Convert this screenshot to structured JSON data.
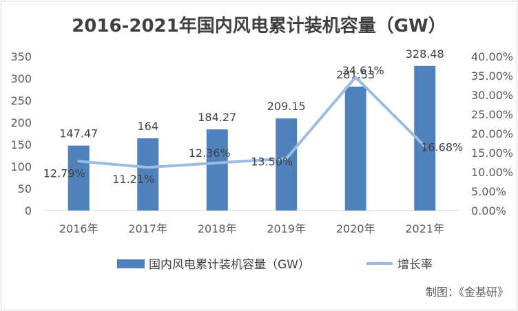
{
  "chart_data": {
    "type": "bar",
    "title": "2016-2021年国内风电累计装机容量（GW）",
    "categories": [
      "2016年",
      "2017年",
      "2018年",
      "2019年",
      "2020年",
      "2021年"
    ],
    "series": [
      {
        "name": "国内风电累计装机容量（GW）",
        "type": "bar",
        "axis": "left",
        "values": [
          147.47,
          164,
          184.27,
          209.15,
          281.53,
          328.48
        ],
        "labels": [
          "147.47",
          "164",
          "184.27",
          "209.15",
          "281.53",
          "328.48"
        ],
        "color": "#4f81bd"
      },
      {
        "name": "增长率",
        "type": "line",
        "axis": "right",
        "values": [
          12.79,
          11.21,
          12.36,
          13.5,
          34.61,
          16.68
        ],
        "labels": [
          "12.79%",
          "11.21%",
          "12.36%",
          "13.50%",
          "34.61%",
          "16.68%"
        ],
        "color": "#9cbbe0"
      }
    ],
    "y_left": {
      "min": 0,
      "max": 350,
      "ticks": [
        "0",
        "50",
        "100",
        "150",
        "200",
        "250",
        "300",
        "350"
      ]
    },
    "y_right": {
      "min": 0,
      "max": 40,
      "ticks": [
        "0.00%",
        "5.00%",
        "10.00%",
        "15.00%",
        "20.00%",
        "25.00%",
        "30.00%",
        "35.00%",
        "40.00%"
      ]
    },
    "grid": false,
    "legend_position": "bottom"
  },
  "source": "制图：《金基研》"
}
